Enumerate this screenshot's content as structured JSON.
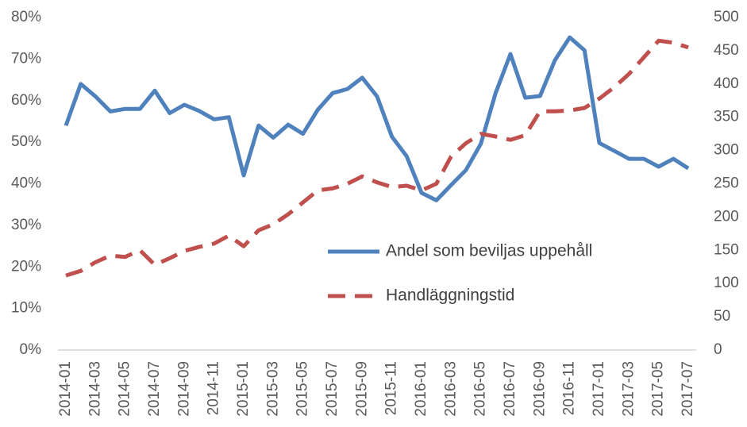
{
  "chart_data": {
    "type": "line",
    "categories": [
      "2014-01",
      null,
      "2014-03",
      null,
      "2014-05",
      null,
      "2014-07",
      null,
      "2014-09",
      null,
      "2014-11",
      null,
      "2015-01",
      null,
      "2015-03",
      null,
      "2015-05",
      null,
      "2015-07",
      null,
      "2015-09",
      null,
      "2015-11",
      null,
      "2016-01",
      null,
      "2016-03",
      null,
      "2016-05",
      null,
      "2016-07",
      null,
      "2016-09",
      null,
      "2016-11",
      null,
      "2017-01",
      null,
      "2017-03",
      null,
      "2017-05",
      null,
      "2017-07"
    ],
    "series": [
      {
        "name": "Andel som beviljas uppehåll",
        "color": "#4f81bd",
        "dashed": false,
        "values": [
          54,
          64,
          61,
          57.4,
          58,
          58,
          62.4,
          57,
          59,
          57.5,
          55.5,
          56,
          42,
          54,
          51.1,
          54.2,
          52,
          57.8,
          61.8,
          62.8,
          65.5,
          61,
          51.3,
          46.6,
          37.8,
          36,
          39.7,
          43.3,
          49.6,
          61.8,
          71.2,
          60.7,
          61.1,
          69.7,
          75.2,
          72.1,
          49.8,
          47.9,
          46,
          46,
          44.1,
          46,
          43.7
        ]
      },
      {
        "name": "Handläggningstid",
        "color": "#c0504d",
        "dashed": true,
        "axis": "y2",
        "values": [
          112,
          119,
          132,
          142,
          140,
          150,
          128,
          138,
          149,
          155,
          160,
          172,
          156,
          180,
          189,
          204,
          222,
          240,
          243,
          250,
          261,
          252,
          245,
          247,
          240,
          250,
          291,
          311,
          325,
          321,
          316,
          323,
          359,
          359,
          360,
          364,
          378,
          395,
          415,
          440,
          465,
          462,
          455
        ]
      }
    ],
    "ylim": [
      0,
      80
    ],
    "yticks": [
      {
        "value": 0,
        "label": "0%"
      },
      {
        "value": 10,
        "label": "10%"
      },
      {
        "value": 20,
        "label": "20%"
      },
      {
        "value": 30,
        "label": "30%"
      },
      {
        "value": 40,
        "label": "40%"
      },
      {
        "value": 50,
        "label": "50%"
      },
      {
        "value": 60,
        "label": "60%"
      },
      {
        "value": 70,
        "label": "70%"
      },
      {
        "value": 80,
        "label": "80%"
      }
    ],
    "y2lim": [
      0,
      500
    ],
    "y2ticks": [
      0,
      50,
      100,
      150,
      200,
      250,
      300,
      350,
      400,
      450,
      500
    ],
    "grid": false
  }
}
